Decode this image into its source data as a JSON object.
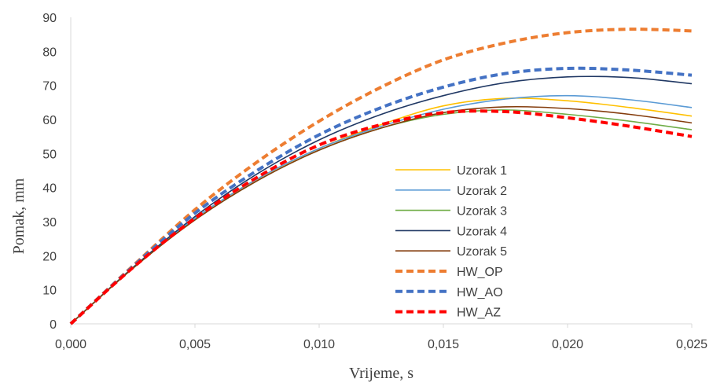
{
  "chart_data": {
    "type": "line",
    "xlabel": "Vrijeme, s",
    "ylabel": "Pomak, mm",
    "xlim": [
      0,
      0.025
    ],
    "ylim": [
      0,
      90
    ],
    "x_ticks": [
      "0,000",
      "0,005",
      "0,010",
      "0,015",
      "0,020",
      "0,025"
    ],
    "y_ticks": [
      "0",
      "10",
      "20",
      "30",
      "40",
      "50",
      "60",
      "70",
      "80",
      "90"
    ],
    "grid": false,
    "legend_position": "center-right",
    "series": [
      {
        "name": "Uzorak 1",
        "color": "#FFC000",
        "dashed": false,
        "x": [
          0,
          0.0025,
          0.005,
          0.0075,
          0.01,
          0.0125,
          0.015,
          0.0175,
          0.02,
          0.0225,
          0.025
        ],
        "y": [
          0,
          16.5,
          31,
          42.5,
          51.5,
          58.5,
          64,
          66.2,
          65.5,
          63.5,
          61
        ]
      },
      {
        "name": "Uzorak 2",
        "color": "#5B9BD5",
        "dashed": false,
        "x": [
          0,
          0.0025,
          0.005,
          0.0075,
          0.01,
          0.0125,
          0.015,
          0.0175,
          0.02,
          0.0225,
          0.025
        ],
        "y": [
          0,
          16.5,
          31,
          42.5,
          51.5,
          58,
          63,
          66,
          67,
          65.8,
          63.5
        ]
      },
      {
        "name": "Uzorak 3",
        "color": "#70AD47",
        "dashed": false,
        "x": [
          0,
          0.0025,
          0.005,
          0.0075,
          0.01,
          0.0125,
          0.015,
          0.0175,
          0.02,
          0.0225,
          0.025
        ],
        "y": [
          0,
          16.3,
          30.5,
          42,
          51,
          57.5,
          61.5,
          62.8,
          61.5,
          59.5,
          57
        ]
      },
      {
        "name": "Uzorak 4",
        "color": "#203864",
        "dashed": false,
        "x": [
          0,
          0.0025,
          0.005,
          0.0075,
          0.01,
          0.0125,
          0.015,
          0.0175,
          0.02,
          0.0225,
          0.025
        ],
        "y": [
          0,
          16.5,
          31.5,
          44,
          54,
          61.5,
          67,
          70.8,
          72.5,
          72.3,
          70.5
        ]
      },
      {
        "name": "Uzorak 5",
        "color": "#843C0C",
        "dashed": false,
        "x": [
          0,
          0.0025,
          0.005,
          0.0075,
          0.01,
          0.0125,
          0.015,
          0.0175,
          0.02,
          0.0225,
          0.025
        ],
        "y": [
          0,
          16.3,
          30.5,
          42,
          51,
          57.5,
          62,
          63.7,
          63.2,
          61.5,
          59
        ]
      },
      {
        "name": "HW_OP",
        "color": "#ED7D31",
        "dashed": true,
        "x": [
          0,
          0.0025,
          0.005,
          0.0075,
          0.01,
          0.0125,
          0.015,
          0.0175,
          0.02,
          0.0225,
          0.025
        ],
        "y": [
          0,
          17,
          33.5,
          47.5,
          59.5,
          69.5,
          77.5,
          82.5,
          85.5,
          86.5,
          86
        ]
      },
      {
        "name": "HW_AO",
        "color": "#4472C4",
        "dashed": true,
        "x": [
          0,
          0.0025,
          0.005,
          0.0075,
          0.01,
          0.0125,
          0.015,
          0.0175,
          0.02,
          0.0225,
          0.025
        ],
        "y": [
          0,
          16.8,
          32.5,
          45,
          55.5,
          63.5,
          69.5,
          73.5,
          75,
          74.5,
          73
        ]
      },
      {
        "name": "HW_AZ",
        "color": "#FF0000",
        "dashed": true,
        "x": [
          0,
          0.0025,
          0.005,
          0.0075,
          0.01,
          0.0125,
          0.015,
          0.0175,
          0.02,
          0.0225,
          0.025
        ],
        "y": [
          0,
          16.5,
          31,
          43,
          52.5,
          58.5,
          62,
          62.3,
          60.5,
          58,
          55
        ]
      }
    ]
  }
}
